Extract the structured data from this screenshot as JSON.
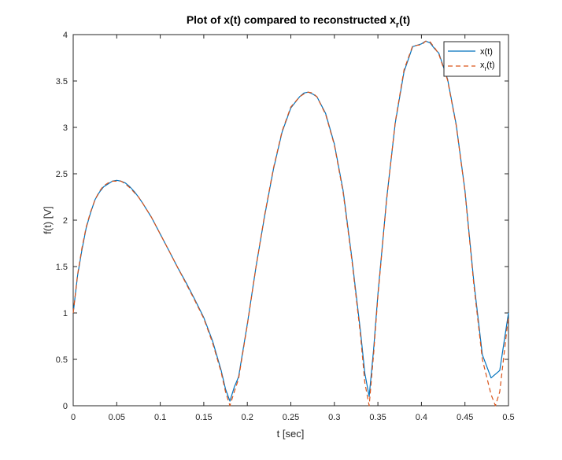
{
  "chart_data": {
    "type": "line",
    "title": "Plot of x(t) compared to reconstructed x",
    "title_subscript": "r",
    "title_suffix": "(t)",
    "xlabel": "t [sec]",
    "ylabel": "f(t) [V]",
    "xlim": [
      0,
      0.5
    ],
    "ylim": [
      0,
      4
    ],
    "xticks": [
      0,
      0.05,
      0.1,
      0.15,
      0.2,
      0.25,
      0.3,
      0.35,
      0.4,
      0.45,
      0.5
    ],
    "xtick_labels": [
      "0",
      "0.05",
      "0.1",
      "0.15",
      "0.2",
      "0.25",
      "0.3",
      "0.35",
      "0.4",
      "0.45",
      "0.5"
    ],
    "yticks": [
      0,
      0.5,
      1,
      1.5,
      2,
      2.5,
      3,
      3.5,
      4
    ],
    "ytick_labels": [
      "0",
      "0.5",
      "1",
      "1.5",
      "2",
      "2.5",
      "3",
      "3.5",
      "4"
    ],
    "grid": false,
    "legend_position": "top-right",
    "series": [
      {
        "name": "x(t)",
        "legend_base": "x",
        "legend_sub": "",
        "legend_suffix": "(t)",
        "color": "#0072BD",
        "dash": "solid",
        "x": [
          0,
          0.005,
          0.01,
          0.015,
          0.02,
          0.025,
          0.03,
          0.035,
          0.04,
          0.045,
          0.05,
          0.055,
          0.06,
          0.065,
          0.07,
          0.075,
          0.08,
          0.09,
          0.1,
          0.11,
          0.12,
          0.13,
          0.14,
          0.15,
          0.16,
          0.17,
          0.175,
          0.18,
          0.185,
          0.19,
          0.2,
          0.21,
          0.22,
          0.23,
          0.24,
          0.25,
          0.26,
          0.265,
          0.27,
          0.275,
          0.28,
          0.29,
          0.3,
          0.31,
          0.32,
          0.33,
          0.335,
          0.34,
          0.345,
          0.35,
          0.36,
          0.37,
          0.38,
          0.39,
          0.4,
          0.405,
          0.41,
          0.415,
          0.42,
          0.43,
          0.44,
          0.45,
          0.46,
          0.47,
          0.48,
          0.49,
          0.5
        ],
        "y": [
          1.0,
          1.4,
          1.68,
          1.92,
          2.08,
          2.22,
          2.3,
          2.36,
          2.39,
          2.42,
          2.43,
          2.42,
          2.4,
          2.36,
          2.31,
          2.25,
          2.18,
          2.03,
          1.85,
          1.67,
          1.49,
          1.32,
          1.14,
          0.95,
          0.7,
          0.38,
          0.18,
          0.05,
          0.2,
          0.31,
          0.88,
          1.5,
          2.05,
          2.55,
          2.95,
          3.21,
          3.33,
          3.37,
          3.38,
          3.36,
          3.33,
          3.15,
          2.82,
          2.32,
          1.6,
          0.8,
          0.35,
          0.1,
          0.6,
          1.2,
          2.23,
          3.05,
          3.6,
          3.87,
          3.9,
          3.93,
          3.91,
          3.85,
          3.8,
          3.52,
          3.03,
          2.32,
          1.35,
          0.55,
          0.3,
          0.38,
          1.0
        ]
      },
      {
        "name": "x_r(t)",
        "legend_base": "x",
        "legend_sub": "r",
        "legend_suffix": "(t)",
        "color": "#D95319",
        "dash": "dashed",
        "x": [
          0,
          0.005,
          0.01,
          0.015,
          0.02,
          0.025,
          0.03,
          0.035,
          0.04,
          0.045,
          0.05,
          0.055,
          0.06,
          0.065,
          0.07,
          0.075,
          0.08,
          0.09,
          0.1,
          0.11,
          0.12,
          0.13,
          0.14,
          0.15,
          0.16,
          0.17,
          0.175,
          0.18,
          0.185,
          0.19,
          0.2,
          0.21,
          0.22,
          0.23,
          0.24,
          0.25,
          0.26,
          0.265,
          0.27,
          0.275,
          0.28,
          0.29,
          0.3,
          0.31,
          0.32,
          0.33,
          0.335,
          0.34,
          0.345,
          0.35,
          0.36,
          0.37,
          0.38,
          0.39,
          0.4,
          0.405,
          0.41,
          0.415,
          0.42,
          0.43,
          0.44,
          0.45,
          0.46,
          0.47,
          0.48,
          0.485,
          0.49,
          0.5
        ],
        "y": [
          1.0,
          1.41,
          1.7,
          1.93,
          2.09,
          2.22,
          2.31,
          2.37,
          2.4,
          2.42,
          2.42,
          2.42,
          2.39,
          2.35,
          2.3,
          2.25,
          2.18,
          2.03,
          1.85,
          1.67,
          1.49,
          1.31,
          1.13,
          0.94,
          0.68,
          0.36,
          0.15,
          0.0,
          0.15,
          0.29,
          0.87,
          1.5,
          2.06,
          2.56,
          2.96,
          3.22,
          3.33,
          3.36,
          3.38,
          3.37,
          3.33,
          3.14,
          2.81,
          2.3,
          1.58,
          0.76,
          0.25,
          0.0,
          0.55,
          1.18,
          2.22,
          3.06,
          3.62,
          3.88,
          3.89,
          3.93,
          3.92,
          3.86,
          3.79,
          3.51,
          3.02,
          2.31,
          1.32,
          0.5,
          0.12,
          0.0,
          0.15,
          0.97
        ]
      }
    ]
  }
}
